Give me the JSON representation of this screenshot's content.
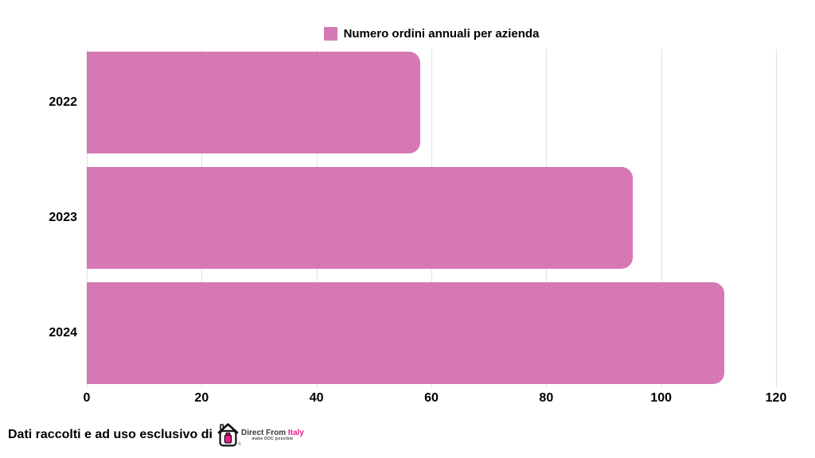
{
  "chart_data": {
    "type": "bar",
    "orientation": "horizontal",
    "title": "Numero ordini annuali per azienda",
    "categories": [
      "2022",
      "2023",
      "2024"
    ],
    "values": [
      58,
      95,
      111
    ],
    "series": [
      {
        "name": "Numero ordini annuali per azienda",
        "values": [
          58,
          95,
          111
        ]
      }
    ],
    "xlabel": "",
    "ylabel": "",
    "xlim": [
      0,
      120
    ],
    "xticks": [
      0,
      20,
      40,
      60,
      80,
      100,
      120
    ],
    "grid": true,
    "legend_position": "top-center",
    "bar_color": "#d678b4"
  },
  "legend": {
    "label": "Numero ordini annuali per azienda",
    "swatch_color": "#d678b4"
  },
  "footer": {
    "text": "Dati raccolti e ad uso esclusivo di",
    "logo": {
      "brand_dark": "Direct From ",
      "brand_accent": "Italy",
      "tagline": "make DOC possible",
      "registered_mark": "®"
    }
  },
  "colors": {
    "bar": "#d678b4",
    "accent_magenta": "#ec1c8d",
    "gridline": "#e2e2e2",
    "text": "#000000"
  }
}
